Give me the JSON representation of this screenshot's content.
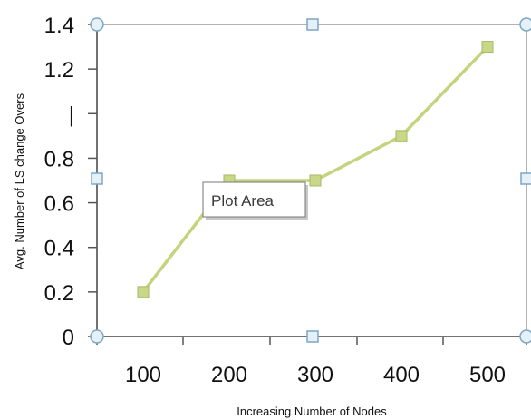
{
  "chart_data": {
    "type": "line",
    "title": "",
    "xlabel": "Increasing Number of Nodes",
    "ylabel": "Avg. Number of LS change Overs",
    "x": [
      100,
      200,
      300,
      400,
      500
    ],
    "categories": [
      "100",
      "200",
      "300",
      "400",
      "500"
    ],
    "series": [
      {
        "values": [
          0.2,
          0.7,
          0.7,
          0.9,
          1.3
        ]
      }
    ],
    "ylim": [
      0,
      1.4
    ],
    "yticks": [
      0,
      0.2,
      0.4,
      0.6,
      0.8,
      1,
      1.2,
      1.4
    ],
    "ytick_labels": [
      "0",
      "0.2",
      "0.4",
      "0.6",
      "0.8",
      "|",
      "1.2",
      "1.4"
    ],
    "grid": false,
    "legend": "none"
  },
  "tooltip": {
    "label": "Plot Area"
  },
  "colors": {
    "series_line": "#c4d47e",
    "marker_fill": "#c8d886",
    "marker_stroke": "#a6b86a",
    "plot_border": "#9a9a9a",
    "handle_fill": "#e6f1f7",
    "handle_stroke": "#7ea6c6"
  }
}
